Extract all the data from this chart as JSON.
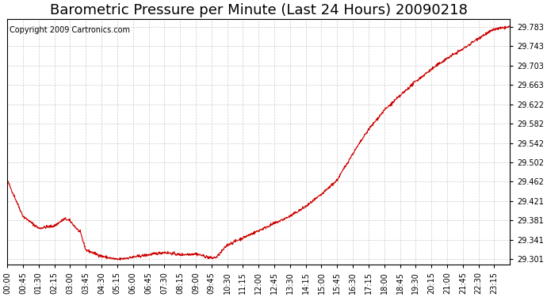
{
  "title": "Barometric Pressure per Minute (Last 24 Hours) 20090218",
  "copyright": "Copyright 2009 Cartronics.com",
  "background_color": "#ffffff",
  "plot_bg_color": "#ffffff",
  "line_color": "#cc0000",
  "grid_color": "#cccccc",
  "y_ticks": [
    29.301,
    29.341,
    29.381,
    29.421,
    29.462,
    29.502,
    29.542,
    29.582,
    29.622,
    29.663,
    29.703,
    29.743,
    29.783
  ],
  "ylim": [
    29.29,
    29.8
  ],
  "x_tick_labels": [
    "00:00",
    "00:45",
    "01:30",
    "02:15",
    "03:00",
    "03:45",
    "04:30",
    "05:15",
    "06:00",
    "06:45",
    "07:30",
    "08:15",
    "09:00",
    "09:45",
    "10:30",
    "11:15",
    "12:00",
    "12:45",
    "13:30",
    "14:15",
    "15:00",
    "15:45",
    "16:30",
    "17:15",
    "18:00",
    "18:45",
    "19:30",
    "20:15",
    "21:00",
    "21:45",
    "22:30",
    "23:15"
  ],
  "ctrl_minutes": [
    0,
    45,
    90,
    135,
    165,
    180,
    210,
    225,
    270,
    315,
    360,
    450,
    495,
    540,
    585,
    600,
    630,
    675,
    720,
    765,
    810,
    855,
    900,
    945,
    990,
    1035,
    1080,
    1125,
    1170,
    1215,
    1260,
    1305,
    1350,
    1395,
    1439
  ],
  "ctrl_pressure": [
    29.465,
    29.39,
    29.365,
    29.37,
    29.385,
    29.38,
    29.355,
    29.32,
    29.307,
    29.3,
    29.305,
    29.315,
    29.31,
    29.312,
    29.303,
    29.305,
    29.33,
    29.345,
    29.36,
    29.375,
    29.39,
    29.41,
    29.435,
    29.465,
    29.52,
    29.57,
    29.61,
    29.64,
    29.67,
    29.695,
    29.718,
    29.737,
    29.76,
    29.778,
    29.783
  ],
  "n_points": 1440,
  "noise_seed": 42,
  "noise_std": 0.0015,
  "title_fontsize": 13,
  "copyright_fontsize": 7,
  "tick_fontsize": 7
}
